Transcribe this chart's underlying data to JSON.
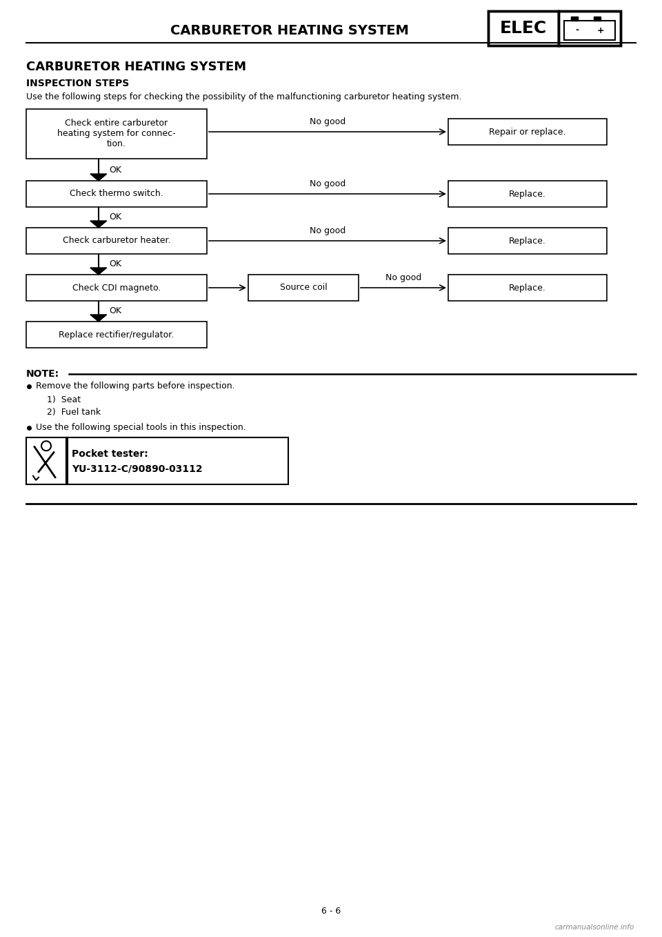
{
  "title_header": "CARBURETOR HEATING SYSTEM",
  "elec_label": "ELEC",
  "page_title": "CARBURETOR HEATING SYSTEM",
  "section_label": "INSPECTION STEPS",
  "intro_text": "Use the following steps for checking the possibility of the malfunctioning carburetor heating system.",
  "note_title": "NOTE:",
  "note_line1": "Remove the following parts before inspection.",
  "note_item1": "1)  Seat",
  "note_item2": "2)  Fuel tank",
  "note_line2": "Use the following special tools in this inspection.",
  "tool_bold": "Pocket tester:",
  "tool_part": "YU-3112-C/90890-03112",
  "footer_text": "6 - 6",
  "watermark": "carmanualsonline.info",
  "bg": "#ffffff"
}
